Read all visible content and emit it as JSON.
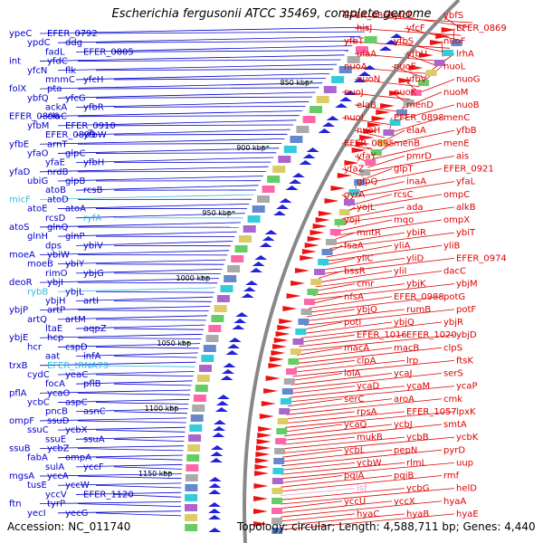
{
  "title": "Escherichia fergusonii ATCC 35469, complete genome",
  "accession": "Accession: NC_011740",
  "topology": "Topology: circular; Length: 4,588,711 bp; Genes: 4,440",
  "colors": {
    "blue_label": "#0000cc",
    "cyan_label": "#33bbdd",
    "red_label": "#dd0000",
    "pink_label": "#ee99cc",
    "backbone": "#888888",
    "tick": "#228833"
  },
  "ticks": [
    "850 kbp",
    "900 kbp",
    "950 kbp",
    "1000 kbp",
    "1050 kbp",
    "1100 kbp",
    "1150 kbp"
  ],
  "left_labels": [
    {
      "t": "ypeC"
    },
    {
      "t": "EFER_0792"
    },
    {
      "t": "ypdC"
    },
    {
      "t": "ddg"
    },
    {
      "t": "fadL"
    },
    {
      "t": "EFER_0805"
    },
    {
      "t": "int"
    },
    {
      "t": "yfdC"
    },
    {
      "t": "yfcN"
    },
    {
      "t": "flk"
    },
    {
      "t": "mnmC"
    },
    {
      "t": "yfcH"
    },
    {
      "t": "folX"
    },
    {
      "t": "pta"
    },
    {
      "t": "ybfQ"
    },
    {
      "t": "yfcG"
    },
    {
      "t": "ackA"
    },
    {
      "t": "yfbR"
    },
    {
      "t": "EFER_0896"
    },
    {
      "t": "elaC"
    },
    {
      "t": "yfbM"
    },
    {
      "t": "EFER_0910"
    },
    {
      "t": "EFER_0899"
    },
    {
      "t": "yfbW"
    },
    {
      "t": "yfbE"
    },
    {
      "t": "arnT"
    },
    {
      "t": "yfaO"
    },
    {
      "t": "glpC"
    },
    {
      "t": "yfaE"
    },
    {
      "t": "yfbH"
    },
    {
      "t": "yfaD"
    },
    {
      "t": "nrdB"
    },
    {
      "t": "ubiG"
    },
    {
      "t": "glpB"
    },
    {
      "t": "atoB"
    },
    {
      "t": "rcsB"
    },
    {
      "t": "micF",
      "c": "cyan"
    },
    {
      "t": "atoD"
    },
    {
      "t": "atoE"
    },
    {
      "t": "atoA"
    },
    {
      "t": "rcsD"
    },
    {
      "t": "ryfA",
      "c": "cyan"
    },
    {
      "t": "atoS"
    },
    {
      "t": "glnQ"
    },
    {
      "t": "glnH"
    },
    {
      "t": "glnP"
    },
    {
      "t": "dps"
    },
    {
      "t": "ybiV"
    },
    {
      "t": "moeA"
    },
    {
      "t": "ybiW"
    },
    {
      "t": "moeB"
    },
    {
      "t": "ybiY"
    },
    {
      "t": "rimO"
    },
    {
      "t": "ybjG"
    },
    {
      "t": "deoR"
    },
    {
      "t": "ybjI"
    },
    {
      "t": "rybB",
      "c": "cyan"
    },
    {
      "t": "ybjL"
    },
    {
      "t": "ybjH"
    },
    {
      "t": "artI"
    },
    {
      "t": "ybjP"
    },
    {
      "t": "artP"
    },
    {
      "t": "artQ"
    },
    {
      "t": "artM"
    },
    {
      "t": "ltaE"
    },
    {
      "t": "aqpZ"
    },
    {
      "t": "ybjE"
    },
    {
      "t": "hcp"
    },
    {
      "t": "hcr"
    },
    {
      "t": "cspD"
    },
    {
      "t": "aat"
    },
    {
      "t": "infA"
    },
    {
      "t": "trxB"
    },
    {
      "t": "EFER_tRNA79",
      "c": "cyan"
    },
    {
      "t": "cydC"
    },
    {
      "t": "yeaC"
    },
    {
      "t": "focA"
    },
    {
      "t": "pflB"
    },
    {
      "t": "pflA"
    },
    {
      "t": "ycaO"
    },
    {
      "t": "ycbC"
    },
    {
      "t": "aspC"
    },
    {
      "t": "pncB"
    },
    {
      "t": "asnC"
    },
    {
      "t": "ompF"
    },
    {
      "t": "ssuD"
    },
    {
      "t": "ssuC"
    },
    {
      "t": "ycbX"
    },
    {
      "t": "ssuE"
    },
    {
      "t": "ssuA"
    },
    {
      "t": "ssuB"
    },
    {
      "t": "ycbZ"
    },
    {
      "t": "fabA"
    },
    {
      "t": "ompA"
    },
    {
      "t": "sulA"
    },
    {
      "t": "yccF"
    },
    {
      "t": "mgsA"
    },
    {
      "t": "yccA"
    },
    {
      "t": "tusE"
    },
    {
      "t": "yccW"
    },
    {
      "t": "yccV"
    },
    {
      "t": "EFER_1120"
    },
    {
      "t": "ftn"
    },
    {
      "t": "tyrP"
    },
    {
      "t": "yecI"
    },
    {
      "t": "yecG"
    }
  ],
  "right_labels": [
    {
      "t": "EFER_0866"
    },
    {
      "t": "yfcE"
    },
    {
      "t": "ybfS"
    },
    {
      "t": "hisJ"
    },
    {
      "t": "yfcF"
    },
    {
      "t": "EFER_0869"
    },
    {
      "t": "yfbT"
    },
    {
      "t": "yfbS"
    },
    {
      "t": "nuoF"
    },
    {
      "t": "ulaA"
    },
    {
      "t": "yfbU"
    },
    {
      "t": "lrhA"
    },
    {
      "t": "nuoA"
    },
    {
      "t": "nuoE"
    },
    {
      "t": "nuoL"
    },
    {
      "t": "nuoN"
    },
    {
      "t": "yfbV"
    },
    {
      "t": "nuoG"
    },
    {
      "t": "nuoJ"
    },
    {
      "t": "nuoK"
    },
    {
      "t": "nuoM"
    },
    {
      "t": "elaB"
    },
    {
      "t": "menD"
    },
    {
      "t": "nuoB"
    },
    {
      "t": "nuoI"
    },
    {
      "t": "EFER_0898"
    },
    {
      "t": "menC"
    },
    {
      "t": "nuoH"
    },
    {
      "t": "elaA"
    },
    {
      "t": "yfbB"
    },
    {
      "t": "EFER_0895"
    },
    {
      "t": "menB"
    },
    {
      "t": "menE"
    },
    {
      "t": "yfaY"
    },
    {
      "t": "pmrD"
    },
    {
      "t": "ais"
    },
    {
      "t": "yfaZ"
    },
    {
      "t": "glpT"
    },
    {
      "t": "EFER_0921"
    },
    {
      "t": "glpQ"
    },
    {
      "t": "inaA"
    },
    {
      "t": "yfaL"
    },
    {
      "t": "gyrA"
    },
    {
      "t": "rcsC"
    },
    {
      "t": "ompC"
    },
    {
      "t": "yojL"
    },
    {
      "t": "ada"
    },
    {
      "t": "alkB"
    },
    {
      "t": "yojI"
    },
    {
      "t": "mqo"
    },
    {
      "t": "ompX"
    },
    {
      "t": "mntR"
    },
    {
      "t": "ybiR"
    },
    {
      "t": "ybiT"
    },
    {
      "t": "fsaA"
    },
    {
      "t": "yliA"
    },
    {
      "t": "yliB"
    },
    {
      "t": "yliC"
    },
    {
      "t": "yliD"
    },
    {
      "t": "EFER_0974"
    },
    {
      "t": "bssR"
    },
    {
      "t": "yliI"
    },
    {
      "t": "dacC"
    },
    {
      "t": "cmr"
    },
    {
      "t": "ybjK"
    },
    {
      "t": "ybjM"
    },
    {
      "t": "nfsA"
    },
    {
      "t": "EFER_0988"
    },
    {
      "t": "potG"
    },
    {
      "t": "ybjO"
    },
    {
      "t": "rumB"
    },
    {
      "t": "potF"
    },
    {
      "t": "potI"
    },
    {
      "t": "ybjQ"
    },
    {
      "t": "ybjR"
    },
    {
      "t": "EFER_1016"
    },
    {
      "t": "EFER_1020"
    },
    {
      "t": "ybjD"
    },
    {
      "t": "macA"
    },
    {
      "t": "macB"
    },
    {
      "t": "clpS"
    },
    {
      "t": "clpA"
    },
    {
      "t": "lrp"
    },
    {
      "t": "ftsK"
    },
    {
      "t": "lolA"
    },
    {
      "t": "ycaJ"
    },
    {
      "t": "serS"
    },
    {
      "t": "ycaD"
    },
    {
      "t": "ycaM"
    },
    {
      "t": "ycaP"
    },
    {
      "t": "serC"
    },
    {
      "t": "aroA"
    },
    {
      "t": "cmk"
    },
    {
      "t": "rpsA"
    },
    {
      "t": "EFER_1057"
    },
    {
      "t": "lpxK"
    },
    {
      "t": "ycaQ"
    },
    {
      "t": "ycbJ"
    },
    {
      "t": "smtA"
    },
    {
      "t": "mukB"
    },
    {
      "t": "ycbB"
    },
    {
      "t": "ycbK"
    },
    {
      "t": "ycbL"
    },
    {
      "t": "pepN"
    },
    {
      "t": "pyrD"
    },
    {
      "t": "ycbW"
    },
    {
      "t": "rlmL"
    },
    {
      "t": "uup"
    },
    {
      "t": "pqiA"
    },
    {
      "t": "pqiB"
    },
    {
      "t": "rmf"
    },
    {
      "t": "isf",
      "c": "pink"
    },
    {
      "t": "ycbG"
    },
    {
      "t": "helD"
    },
    {
      "t": "yccU"
    },
    {
      "t": "yccX"
    },
    {
      "t": "hyaA"
    },
    {
      "t": "hyaC"
    },
    {
      "t": "hyaB"
    },
    {
      "t": "hyaE"
    }
  ]
}
